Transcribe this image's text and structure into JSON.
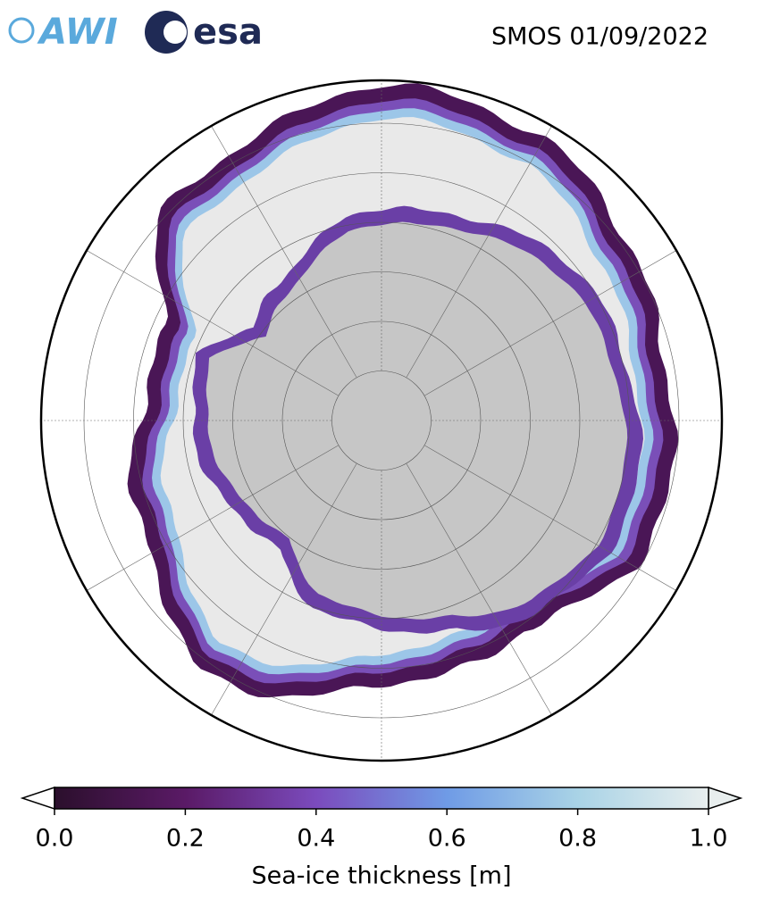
{
  "header": {
    "logos": [
      "AWI",
      "esa"
    ],
    "title": "SMOS 01/09/2022"
  },
  "colorbar": {
    "label": "Sea-ice thickness [m]",
    "range": [
      0,
      1
    ],
    "ticks": [
      {
        "value": 0,
        "label": "0.0"
      },
      0.2,
      0.4,
      0.6,
      0.8,
      {
        "value": 1,
        "label": "1.0"
      }
    ],
    "colormap": [
      "#2b0f2c",
      "#5a1a66",
      "#7b4bbd",
      "#6f9be6",
      "#a9d3e6",
      "#e8eeee"
    ]
  }
}
